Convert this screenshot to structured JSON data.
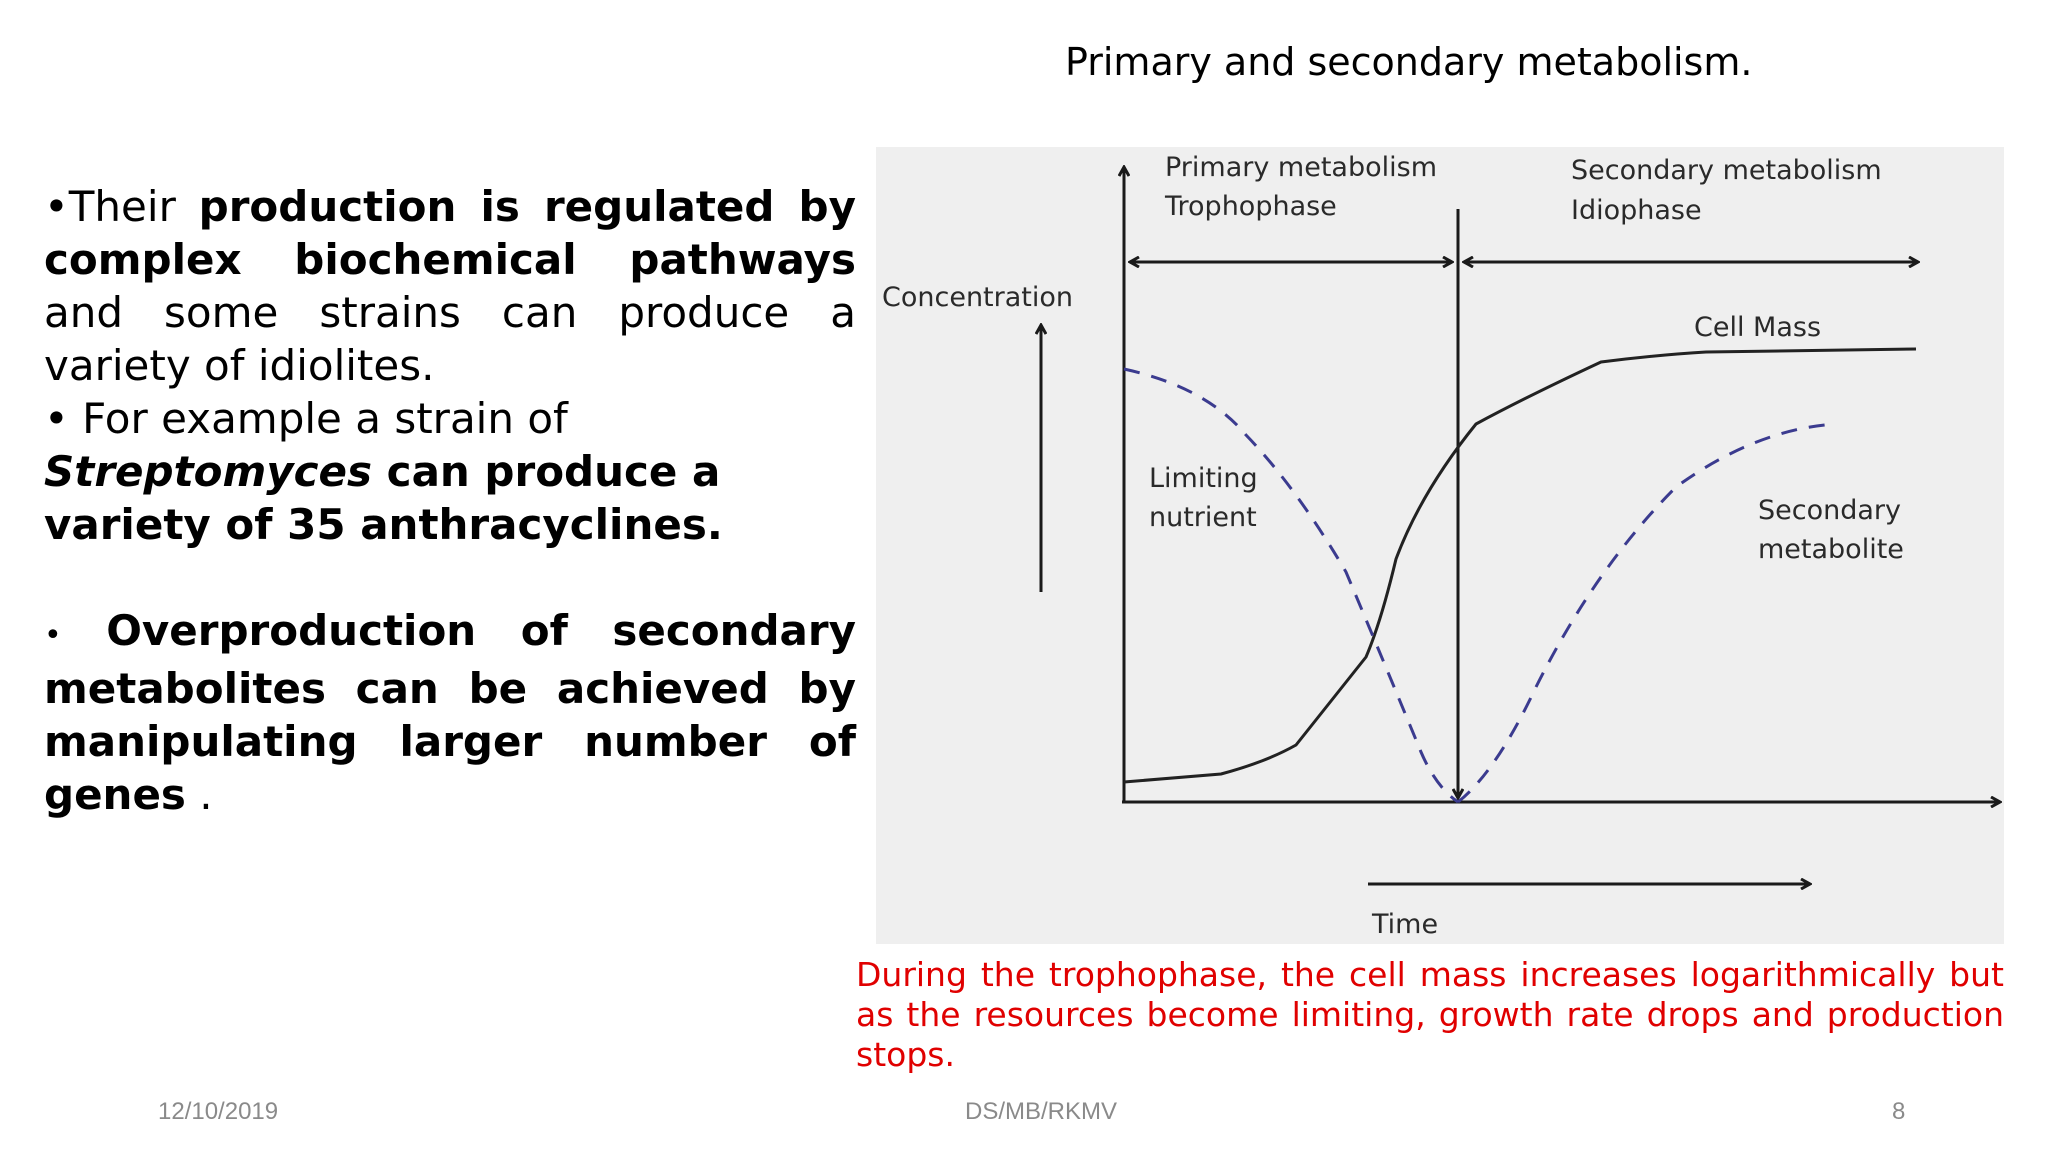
{
  "slide": {
    "title": "Primary and secondary metabolism.",
    "paragraph1": {
      "bullet": "•",
      "t1": "Their ",
      "b1": "production is regulated by complex biochemical pathways",
      "t2": " and some  strains can produce a variety of idiolites."
    },
    "paragraph2": {
      "bullet": "•",
      "t1": " For example a strain of",
      "b_italic": "Streptomyces",
      "b1": " can  produce a variety of 35 anthracyclines."
    },
    "paragraph3": {
      "bullet": "•",
      "b1": " Overproduction  of  secondary metabolites can be achieved by manipulating larger number of genes",
      "t1": " ."
    },
    "caption": "During the trophophase, the cell mass increases logarithmically but as the resources become limiting, growth rate drops and production stops."
  },
  "diagram": {
    "phase_primary_line1": "Primary metabolism",
    "phase_primary_line2": "Trophophase",
    "phase_secondary_line1": "Secondary metabolism",
    "phase_secondary_line2": "Idiophase",
    "y_label": "Concentration",
    "x_label": "Time",
    "cell_mass_label": "Cell Mass",
    "limiting_label_line1": "Limiting",
    "limiting_label_line2": "nutrient",
    "secondary_label_line1": "Secondary",
    "secondary_label_line2": "metabolite",
    "colors": {
      "axis": "#1a1a1a",
      "cell_mass": "#222222",
      "dashed_curves": "#3b3b8f",
      "caption": "#e00000"
    }
  },
  "footer": {
    "date": "12/10/2019",
    "center": "DS/MB/RKMV",
    "page": "8"
  }
}
